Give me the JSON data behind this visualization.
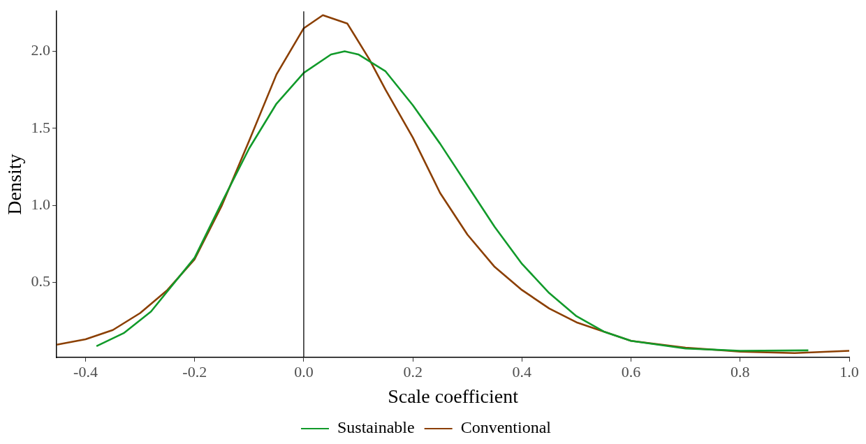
{
  "chart_data": {
    "type": "line",
    "xlabel": "Scale coefficient",
    "ylabel": "Density",
    "xlim": [
      -0.453,
      1.0
    ],
    "ylim": [
      0.012,
      2.26
    ],
    "xticks": [
      {
        "value": -0.4,
        "label": "-0.4"
      },
      {
        "value": -0.2,
        "label": "-0.2"
      },
      {
        "value": 0,
        "label": "0.0"
      },
      {
        "value": 0.2,
        "label": "0.2"
      },
      {
        "value": 0.4,
        "label": "0.4"
      },
      {
        "value": 0.6,
        "label": "0.6"
      },
      {
        "value": 0.8,
        "label": "0.8"
      },
      {
        "value": 1,
        "label": "1.0"
      }
    ],
    "yticks": [
      {
        "value": 0.5,
        "label": "0.5"
      },
      {
        "value": 1,
        "label": "1.0"
      },
      {
        "value": 1.5,
        "label": "1.5"
      },
      {
        "value": 2,
        "label": "2.0"
      }
    ],
    "grid": false,
    "legend": "bottom",
    "marker": "none",
    "line_style": "solid",
    "ref_lines": [
      {
        "axis": "x",
        "value": 0,
        "color": "#000000"
      }
    ],
    "series": [
      {
        "name": "Sustainable",
        "color": "#119a2a",
        "x": [
          -0.38,
          -0.33,
          -0.28,
          -0.2,
          -0.15,
          -0.1,
          -0.05,
          0,
          0.05,
          0.075,
          0.1,
          0.15,
          0.2,
          0.25,
          0.3,
          0.35,
          0.4,
          0.45,
          0.5,
          0.55,
          0.6,
          0.7,
          0.8,
          0.925
        ],
        "values": [
          0.085,
          0.17,
          0.31,
          0.66,
          1.02,
          1.37,
          1.66,
          1.86,
          1.98,
          2.0,
          1.98,
          1.87,
          1.65,
          1.4,
          1.13,
          0.86,
          0.62,
          0.43,
          0.28,
          0.18,
          0.12,
          0.07,
          0.055,
          0.058
        ]
      },
      {
        "name": "Conventional",
        "color": "#8b3f02",
        "x": [
          -0.453,
          -0.4,
          -0.35,
          -0.3,
          -0.25,
          -0.2,
          -0.15,
          -0.1,
          -0.05,
          0,
          0.035,
          0.08,
          0.12,
          0.15,
          0.2,
          0.25,
          0.3,
          0.35,
          0.4,
          0.45,
          0.5,
          0.6,
          0.7,
          0.8,
          0.9,
          1.0
        ],
        "values": [
          0.095,
          0.13,
          0.19,
          0.3,
          0.45,
          0.65,
          1.0,
          1.42,
          1.85,
          2.15,
          2.235,
          2.18,
          1.95,
          1.75,
          1.44,
          1.08,
          0.81,
          0.6,
          0.45,
          0.33,
          0.24,
          0.12,
          0.075,
          0.05,
          0.04,
          0.055
        ]
      }
    ]
  }
}
